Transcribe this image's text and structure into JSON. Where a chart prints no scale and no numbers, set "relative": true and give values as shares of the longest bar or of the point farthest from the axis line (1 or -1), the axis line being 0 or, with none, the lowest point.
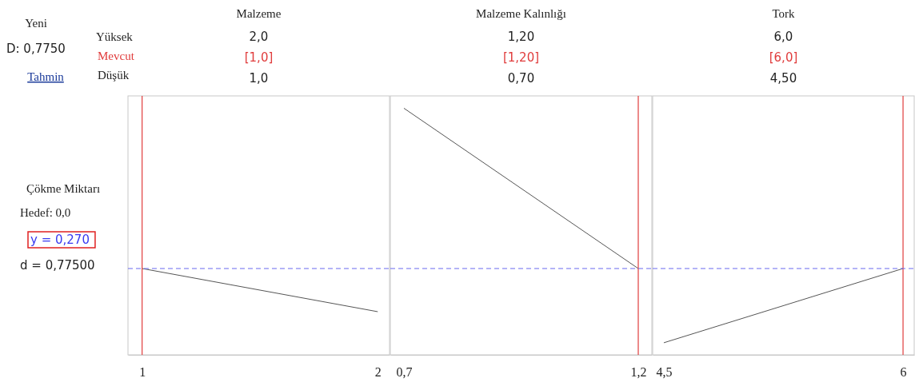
{
  "chart_data": [
    {
      "type": "line",
      "title": "Malzeme",
      "relative": true,
      "x": [
        1,
        2
      ],
      "series": [
        {
          "color": "#555555",
          "values": [
            1,
            0.5
          ]
        }
      ],
      "xlim": [
        0.94,
        2.05
      ],
      "xticks": [
        1,
        2
      ],
      "ref_lines": [
        {
          "axis": "x",
          "value": 1,
          "color": "#e03c3c",
          "line_style": "solid"
        },
        {
          "axis": "y",
          "value": 1,
          "color": "#6a6af0",
          "line_style": "dashed"
        }
      ],
      "annotations": [
        "2,0",
        "[1,0]",
        "1,0",
        "Yeni",
        "D: 0,7750",
        "Tahmin",
        "Yüksek",
        "Mevcut",
        "Düşük",
        "Çökme Miktarı",
        "Hedef: 0,0",
        "y = 0,270",
        "d = 0,77500"
      ]
    },
    {
      "type": "line",
      "title": "Malzeme Kalınlığı",
      "relative": true,
      "x": [
        0.7,
        1.2
      ],
      "series": [
        {
          "color": "#555555",
          "values": [
            1,
            0.35
          ]
        }
      ],
      "xlim": [
        0.671,
        1.229
      ],
      "xticks": [
        {
          "value": 0.7,
          "label": "0,7"
        },
        {
          "value": 1.2,
          "label": "1,2"
        }
      ],
      "ref_lines": [
        {
          "axis": "x",
          "value": 1.2,
          "color": "#e03c3c",
          "line_style": "solid"
        },
        {
          "axis": "y",
          "value": 0.35,
          "color": "#6a6af0",
          "line_style": "dashed"
        }
      ],
      "annotations": [
        "1,20",
        "[1,20]",
        "0,70"
      ]
    },
    {
      "type": "line",
      "title": "Tork",
      "relative": true,
      "x": [
        4.5,
        6
      ],
      "series": [
        {
          "color": "#555555",
          "values": [
            0.14,
            1
          ]
        }
      ],
      "xlim": [
        4.43,
        6.07
      ],
      "xticks": [
        {
          "value": 4.5,
          "label": "4,5"
        },
        6
      ],
      "ref_lines": [
        {
          "axis": "x",
          "value": 6,
          "color": "#e03c3c",
          "line_style": "solid"
        },
        {
          "axis": "y",
          "value": 1,
          "color": "#6a6af0",
          "line_style": "dashed"
        }
      ],
      "annotations": [
        "6,0",
        "[6,0]",
        "4,50"
      ]
    }
  ]
}
